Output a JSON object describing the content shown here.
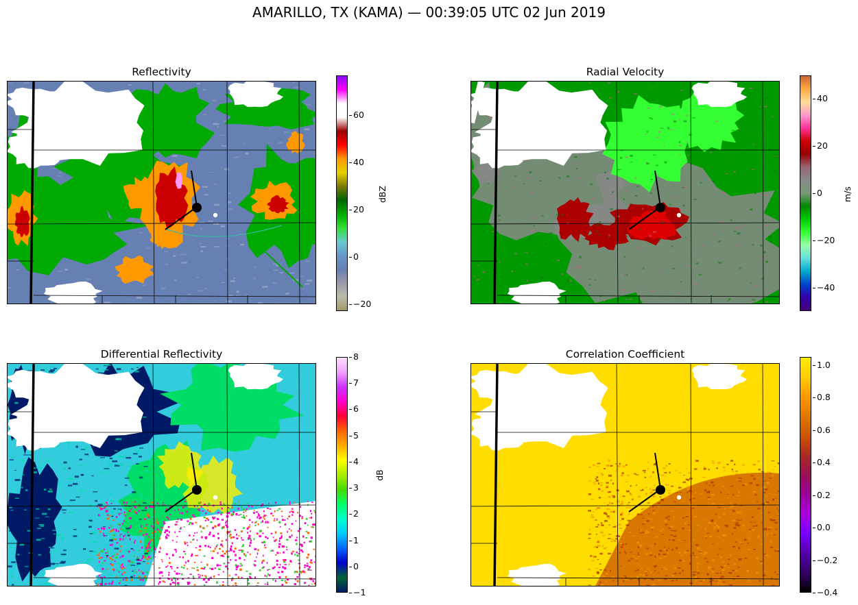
{
  "title": "AMARILLO, TX (KAMA) — 00:39:05 UTC 02 Jun 2019",
  "panels": [
    {
      "title": "Reflectivity",
      "colorbar": {
        "label": "dBZ",
        "ticks": [
          "60",
          "40",
          "20",
          "0",
          "-20"
        ],
        "range": [
          -23,
          77
        ],
        "colors": [
          "#8b0aff",
          "#ff00ff",
          "#ffffff",
          "#ffffff",
          "#990000",
          "#ff0000",
          "#ff9900",
          "#e6d200",
          "#7a7a00",
          "#006600",
          "#00aa00",
          "#33dd33",
          "#66cccc",
          "#6699cc",
          "#6680b3",
          "#9999aa",
          "#bbbbaa",
          "#a39a66"
        ]
      }
    },
    {
      "title": "Radial Velocity",
      "colorbar": {
        "label": "m/s",
        "ticks": [
          "40",
          "20",
          "0",
          "-20",
          "-40"
        ],
        "range": [
          -50,
          50
        ],
        "colors": [
          "#cc6633",
          "#ffaa44",
          "#ffdd99",
          "#ff99cc",
          "#ff3399",
          "#cc0000",
          "#990000",
          "#996677",
          "#888888",
          "#779977",
          "#008800",
          "#00cc00",
          "#33ff33",
          "#99ffaa",
          "#66dddd",
          "#00aacc",
          "#0044cc",
          "#3300aa",
          "#440077"
        ]
      }
    },
    {
      "title": "Differential Reflectivity",
      "colorbar": {
        "label": "dB",
        "ticks": [
          "8",
          "7",
          "6",
          "5",
          "4",
          "3",
          "2",
          "1",
          "0",
          "-1"
        ],
        "range": [
          -1,
          8
        ],
        "colors": [
          "#ffe0ff",
          "#f0a0ff",
          "#cc33ff",
          "#ff00cc",
          "#ff0033",
          "#ff6600",
          "#ffaa00",
          "#ffff00",
          "#aaee00",
          "#44dd00",
          "#00ff66",
          "#00ffcc",
          "#00ccff",
          "#0066ff",
          "#0000cc",
          "#006633",
          "#001a66"
        ]
      }
    },
    {
      "title": "Correlation Coefficient",
      "colorbar": {
        "label": "",
        "ticks": [
          "1.0",
          "0.8",
          "0.6",
          "0.4",
          "0.2",
          "0.0",
          "-0.2",
          "-0.4"
        ],
        "range": [
          -0.4,
          1.05
        ],
        "colors": [
          "#ffee00",
          "#ffcc00",
          "#ff9900",
          "#e07700",
          "#cc5500",
          "#aa2a22",
          "#991155",
          "#990099",
          "#aa00dd",
          "#7700ff",
          "#5500aa",
          "#330066",
          "#000000"
        ]
      }
    }
  ],
  "layers": {
    "reflectivity": [
      "#6680b3",
      "#00aa00",
      "#ff9900",
      "#cc0000",
      "#ff99ff"
    ],
    "velocity": [
      "#888888",
      "#009900",
      "#33ff33",
      "#aa0000",
      "#dd0000"
    ],
    "zdr": [
      "#33ccdd",
      "#001a66",
      "#00dd66",
      "#ffee00",
      "#ffffff",
      "#ff00cc"
    ],
    "cc": [
      "#ffdd00",
      "#cc5500",
      "#ee9900"
    ]
  }
}
